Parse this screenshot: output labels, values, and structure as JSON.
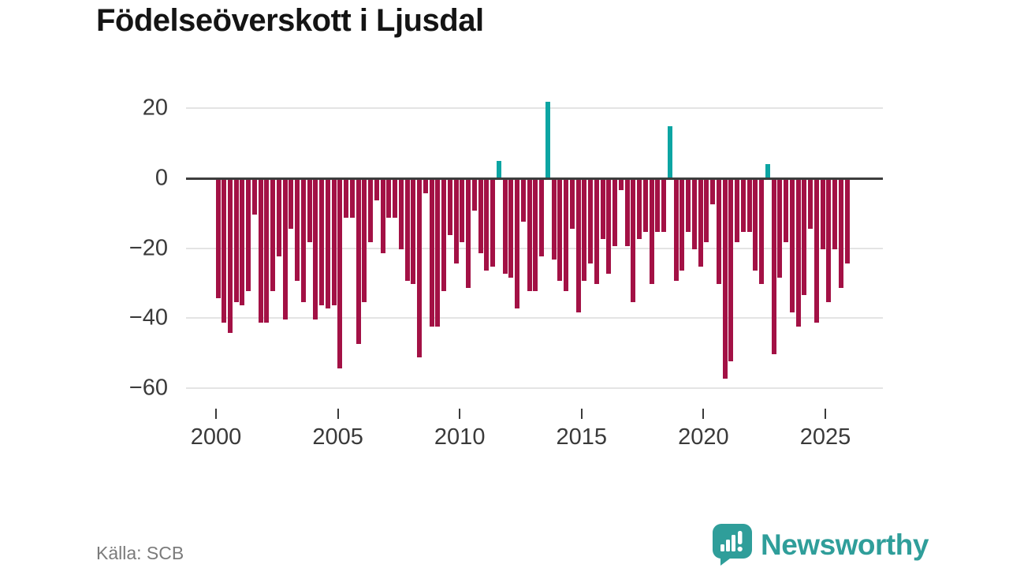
{
  "header": {
    "title": "Födelseöverskott i Ljusdal"
  },
  "footer": {
    "source": "Källa: SCB",
    "brand": "Newsworthy",
    "brand_icon": "newsworthy-speech-bubble-barchart-icon"
  },
  "colors": {
    "negative_bar": "#a31145",
    "positive_bar": "#0da5a3",
    "zero_line": "#3d3d3d",
    "gridline": "#e4e4e4",
    "axis_text": "#3a3a3a",
    "source_text": "#7b7b7b",
    "brand_teal": "#2f9e9a"
  },
  "chart_data": {
    "type": "bar",
    "title": "Födelseöverskott i Ljusdal",
    "start_period": "2000Q1",
    "periods_per_year": 4,
    "grid": true,
    "legend": false,
    "ylim": [
      -60,
      22
    ],
    "y_ticks": [
      20,
      0,
      -20,
      -40,
      -60
    ],
    "y_tick_labels": [
      "20",
      "0",
      "−20",
      "−40",
      "−60"
    ],
    "x_tick_years": [
      2000,
      2005,
      2010,
      2015,
      2020,
      2025
    ],
    "x_tick_labels": [
      "2000",
      "2005",
      "2010",
      "2015",
      "2020",
      "2025"
    ],
    "values": [
      -34,
      -41,
      -44,
      -35,
      -36,
      -32,
      -10,
      -41,
      -41,
      -32,
      -22,
      -40,
      -14,
      -29,
      -35,
      -18,
      -40,
      -36,
      -37,
      -36,
      -54,
      -11,
      -11,
      -47,
      -35,
      -18,
      -6,
      -21,
      -11,
      -11,
      -20,
      -29,
      -30,
      -51,
      -4,
      -42,
      -42,
      -32,
      -16,
      -24,
      -18,
      -31,
      -9,
      -21,
      -26,
      -25,
      5,
      -27,
      -28,
      -37,
      -12,
      -32,
      -32,
      -22,
      22,
      -23,
      -29,
      -32,
      -14,
      -38,
      -29,
      -24,
      -30,
      -17,
      -27,
      -19,
      -3,
      -19,
      -35,
      -17,
      -15,
      -30,
      -15,
      -15,
      15,
      -29,
      -26,
      -15,
      -20,
      -25,
      -18,
      -7,
      -30,
      -57,
      -52,
      -18,
      -15,
      -15,
      -26,
      -30,
      4,
      -50,
      -28,
      -18,
      -38,
      -42,
      -33,
      -14,
      -41,
      -20,
      -35,
      -20,
      -31,
      -24
    ]
  }
}
